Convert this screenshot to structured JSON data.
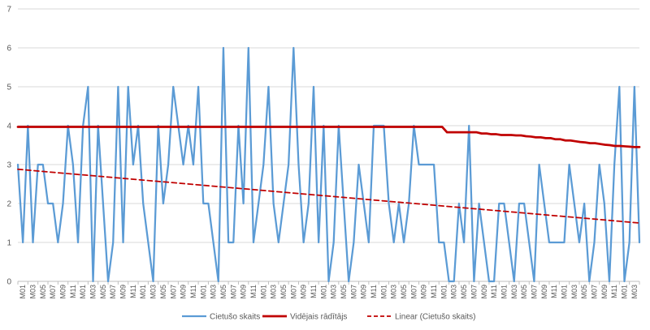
{
  "chart_data": {
    "type": "line",
    "ylim": [
      0,
      7
    ],
    "yticks": [
      0,
      1,
      2,
      3,
      4,
      5,
      6,
      7
    ],
    "grid": "horizontal",
    "legend_position": "bottom",
    "x_labels": [
      "M01",
      "M03",
      "M05",
      "M07",
      "M09",
      "M11",
      "M01",
      "M03",
      "M05",
      "M07",
      "M09",
      "M11",
      "M01",
      "M03",
      "M05",
      "M07",
      "M09",
      "M11",
      "M01",
      "M03",
      "M05",
      "M07",
      "M09",
      "M11",
      "M01",
      "M03",
      "M05",
      "M07",
      "M09",
      "M11",
      "M01",
      "M03",
      "M05",
      "M07",
      "M09",
      "M11",
      "M01",
      "M03",
      "M05",
      "M07",
      "M09",
      "M11",
      "M01",
      "M03",
      "M05",
      "M07",
      "M09",
      "M11",
      "M01",
      "M03",
      "M05",
      "M07",
      "M09",
      "M11",
      "M01",
      "M03",
      "M05",
      "M07",
      "M09",
      "M11",
      "M01",
      "M03"
    ],
    "series": [
      {
        "name": "Cietušo skaits",
        "color": "#5B9BD5",
        "style": "solid",
        "values": [
          3,
          1,
          4,
          1,
          3,
          3,
          2,
          2,
          1,
          2,
          4,
          3,
          1,
          4,
          5,
          0,
          4,
          2,
          0,
          1,
          5,
          1,
          5,
          3,
          4,
          2,
          1,
          0,
          4,
          2,
          3,
          5,
          4,
          3,
          4,
          3,
          5,
          2,
          2,
          1,
          0,
          6,
          1,
          1,
          4,
          2,
          6,
          1,
          2,
          3,
          5,
          2,
          1,
          2,
          3,
          6,
          3,
          1,
          2,
          5,
          1,
          4,
          0,
          1,
          4,
          2,
          0,
          1,
          3,
          2,
          1,
          4,
          4,
          4,
          2,
          1,
          2,
          1,
          2,
          4,
          3,
          3,
          3,
          3,
          1,
          1,
          0,
          0,
          2,
          1,
          4,
          0,
          2,
          1,
          0,
          0,
          2,
          2,
          1,
          0,
          2,
          2,
          1,
          0,
          3,
          2,
          1,
          1,
          1,
          1,
          3,
          2,
          1,
          2,
          0,
          1,
          3,
          2,
          0,
          3,
          5,
          0,
          1,
          5,
          1
        ]
      },
      {
        "name": "Vidējais rādītājs",
        "color": "#C00000",
        "style": "solid",
        "values": [
          3.97,
          3.97,
          3.97,
          3.97,
          3.97,
          3.97,
          3.97,
          3.97,
          3.97,
          3.97,
          3.97,
          3.97,
          3.97,
          3.97,
          3.97,
          3.97,
          3.97,
          3.97,
          3.97,
          3.97,
          3.97,
          3.97,
          3.97,
          3.97,
          3.97,
          3.97,
          3.97,
          3.97,
          3.97,
          3.97,
          3.97,
          3.97,
          3.97,
          3.97,
          3.97,
          3.97,
          3.97,
          3.97,
          3.97,
          3.97,
          3.97,
          3.97,
          3.97,
          3.97,
          3.97,
          3.97,
          3.97,
          3.97,
          3.97,
          3.97,
          3.97,
          3.97,
          3.97,
          3.97,
          3.97,
          3.97,
          3.97,
          3.97,
          3.97,
          3.97,
          3.97,
          3.97,
          3.97,
          3.97,
          3.97,
          3.97,
          3.97,
          3.97,
          3.97,
          3.97,
          3.97,
          3.97,
          3.97,
          3.97,
          3.97,
          3.97,
          3.97,
          3.97,
          3.97,
          3.97,
          3.97,
          3.97,
          3.97,
          3.97,
          3.97,
          3.97,
          3.97,
          3.83,
          3.83,
          3.83,
          3.83,
          3.83,
          3.83,
          3.83,
          3.8,
          3.8,
          3.78,
          3.78,
          3.76,
          3.76,
          3.76,
          3.75,
          3.75,
          3.73,
          3.72,
          3.7,
          3.7,
          3.68,
          3.68,
          3.65,
          3.65,
          3.62,
          3.62,
          3.6,
          3.58,
          3.57,
          3.55,
          3.55,
          3.53,
          3.51,
          3.5,
          3.48,
          3.48,
          3.47,
          3.46,
          3.45,
          3.45
        ]
      },
      {
        "name": "Linear (Cietušo skaits)",
        "color": "#C00000",
        "style": "dashed",
        "values": [
          2.88,
          1.5
        ]
      }
    ]
  }
}
